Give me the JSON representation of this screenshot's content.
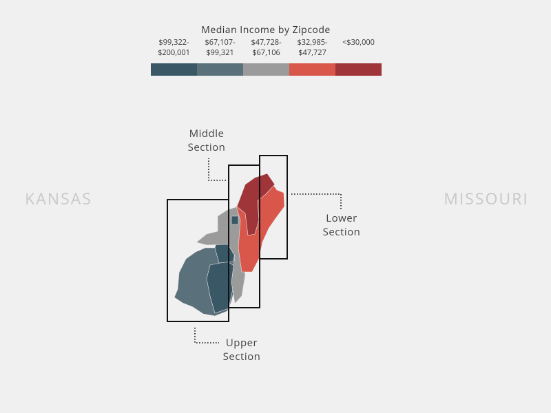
{
  "legend": {
    "title": "Median Income by Zipcode",
    "items": [
      {
        "lines": [
          "$99,322-",
          "$200,001"
        ],
        "color": "#3a5766"
      },
      {
        "lines": [
          "$67,107-",
          "$99,321"
        ],
        "color": "#5a717b"
      },
      {
        "lines": [
          "$47,728-",
          "$67,106"
        ],
        "color": "#9b9b9b"
      },
      {
        "lines": [
          "$32,985-",
          "$47,727"
        ],
        "color": "#d9574a"
      },
      {
        "lines": [
          "<$30,000"
        ],
        "color": "#a03539"
      }
    ]
  },
  "states": [
    "KANSAS",
    "MISSOURI"
  ],
  "sections": [
    {
      "lines": [
        "Middle",
        "Section"
      ]
    },
    {
      "lines": [
        "Lower",
        "Section"
      ]
    },
    {
      "lines": [
        "Upper",
        "Section"
      ]
    }
  ]
}
